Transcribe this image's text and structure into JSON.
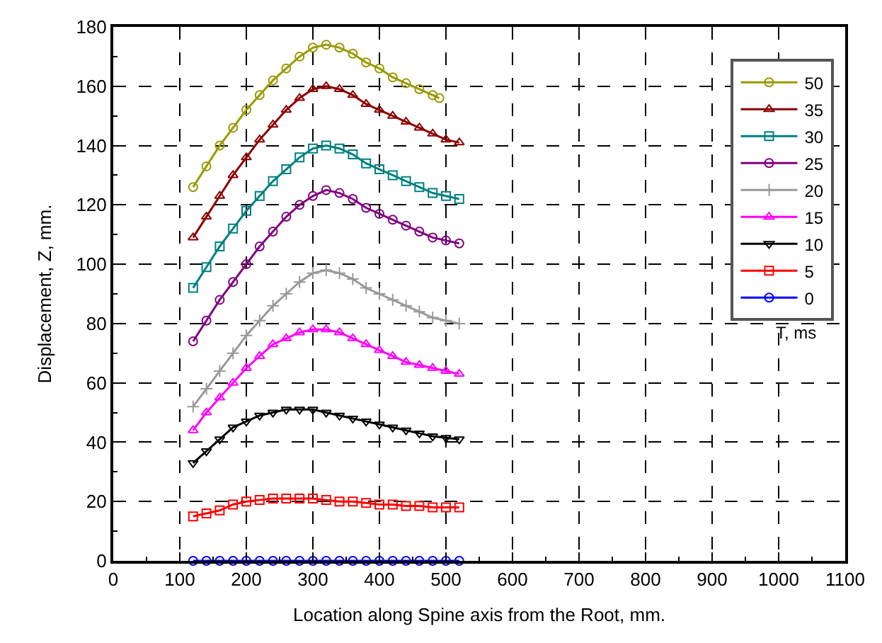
{
  "chart_data": {
    "type": "line",
    "xlabel": "Location along Spine axis from the Root, mm.",
    "ylabel": "Displacement, Z, mm.",
    "legend_title": "T, ms",
    "legend": "top right",
    "grid": true,
    "line_style": "solid",
    "xlim": [
      0,
      1100
    ],
    "xticks": [
      0,
      100,
      200,
      300,
      400,
      500,
      600,
      700,
      800,
      900,
      1000,
      1100
    ],
    "ylim": [
      0,
      180
    ],
    "yticks": [
      0,
      20,
      40,
      60,
      80,
      100,
      120,
      140,
      160,
      180
    ],
    "series": [
      {
        "name": "50",
        "color": "#999900",
        "marker": "circle",
        "x": [
          120,
          140,
          160,
          180,
          200,
          220,
          240,
          260,
          280,
          300,
          320,
          340,
          360,
          380,
          400,
          420,
          440,
          460,
          480,
          490
        ],
        "values": [
          126,
          133,
          140,
          146,
          152,
          157,
          162,
          166,
          170,
          173,
          174,
          173,
          171,
          168,
          166,
          163,
          161,
          159,
          157,
          156
        ]
      },
      {
        "name": "35",
        "color": "#8b0000",
        "marker": "triangle",
        "x": [
          120,
          140,
          160,
          180,
          200,
          220,
          240,
          260,
          280,
          300,
          320,
          340,
          360,
          380,
          400,
          420,
          440,
          460,
          480,
          500,
          520
        ],
        "values": [
          109,
          116,
          123,
          130,
          136,
          142,
          147,
          152,
          156,
          159,
          160,
          159,
          157,
          154,
          152,
          150,
          148,
          146,
          144,
          142,
          141
        ]
      },
      {
        "name": "30",
        "color": "#008080",
        "marker": "square",
        "x": [
          120,
          140,
          160,
          180,
          200,
          220,
          240,
          260,
          280,
          300,
          320,
          340,
          360,
          380,
          400,
          420,
          440,
          460,
          480,
          500,
          520
        ],
        "values": [
          92,
          99,
          106,
          112,
          118,
          123,
          128,
          132,
          136,
          139,
          140,
          139,
          137,
          134,
          132,
          130,
          128,
          126,
          124,
          123,
          122
        ]
      },
      {
        "name": "25",
        "color": "#800080",
        "marker": "circle",
        "x": [
          120,
          140,
          160,
          180,
          200,
          220,
          240,
          260,
          280,
          300,
          320,
          340,
          360,
          380,
          400,
          420,
          440,
          460,
          480,
          500,
          520
        ],
        "values": [
          74,
          81,
          88,
          94,
          100,
          106,
          111,
          116,
          120,
          123,
          125,
          124,
          122,
          119,
          117,
          115,
          113,
          111,
          109,
          108,
          107
        ]
      },
      {
        "name": "20",
        "color": "#999999",
        "marker": "cross",
        "x": [
          120,
          140,
          160,
          180,
          200,
          220,
          240,
          260,
          280,
          300,
          320,
          340,
          360,
          380,
          400,
          420,
          440,
          460,
          480,
          500,
          520
        ],
        "values": [
          52,
          58,
          64,
          70,
          76,
          81,
          86,
          90,
          94,
          97,
          98,
          97,
          95,
          92,
          90,
          88,
          86,
          84,
          82,
          81,
          80
        ]
      },
      {
        "name": "15",
        "color": "#ff00ff",
        "marker": "triangle",
        "x": [
          120,
          140,
          160,
          180,
          200,
          220,
          240,
          260,
          280,
          300,
          320,
          340,
          360,
          380,
          400,
          420,
          440,
          460,
          480,
          500,
          520
        ],
        "values": [
          44,
          50,
          55,
          60,
          65,
          69,
          73,
          75,
          77,
          78,
          78,
          77,
          75,
          73,
          71,
          69,
          67,
          66,
          65,
          64,
          63
        ]
      },
      {
        "name": "10",
        "color": "#000000",
        "marker": "triangle-down",
        "x": [
          120,
          140,
          160,
          180,
          200,
          220,
          240,
          260,
          280,
          300,
          320,
          340,
          360,
          380,
          400,
          420,
          440,
          460,
          480,
          500,
          520
        ],
        "values": [
          33,
          37,
          41,
          45,
          47,
          49,
          50,
          51,
          51,
          51,
          50,
          49,
          48,
          47,
          46,
          45,
          44,
          43,
          42,
          41.5,
          41
        ]
      },
      {
        "name": "5",
        "color": "#ff0000",
        "marker": "square",
        "x": [
          120,
          140,
          160,
          180,
          200,
          220,
          240,
          260,
          280,
          300,
          320,
          340,
          360,
          380,
          400,
          420,
          440,
          460,
          480,
          500,
          520
        ],
        "values": [
          15,
          16,
          17,
          19,
          20,
          20.5,
          21,
          21,
          21,
          21,
          20.5,
          20,
          20,
          19.5,
          19,
          19,
          18.5,
          18.5,
          18,
          18,
          18
        ]
      },
      {
        "name": "0",
        "color": "#0000ff",
        "marker": "circle",
        "x": [
          120,
          140,
          160,
          180,
          200,
          220,
          240,
          260,
          280,
          300,
          320,
          340,
          360,
          380,
          400,
          420,
          440,
          460,
          480,
          500,
          520
        ],
        "values": [
          0,
          0,
          0,
          0,
          0,
          0,
          0,
          0,
          0,
          0,
          0,
          0,
          0,
          0,
          0,
          0,
          0,
          0,
          0,
          0,
          0
        ]
      }
    ]
  }
}
